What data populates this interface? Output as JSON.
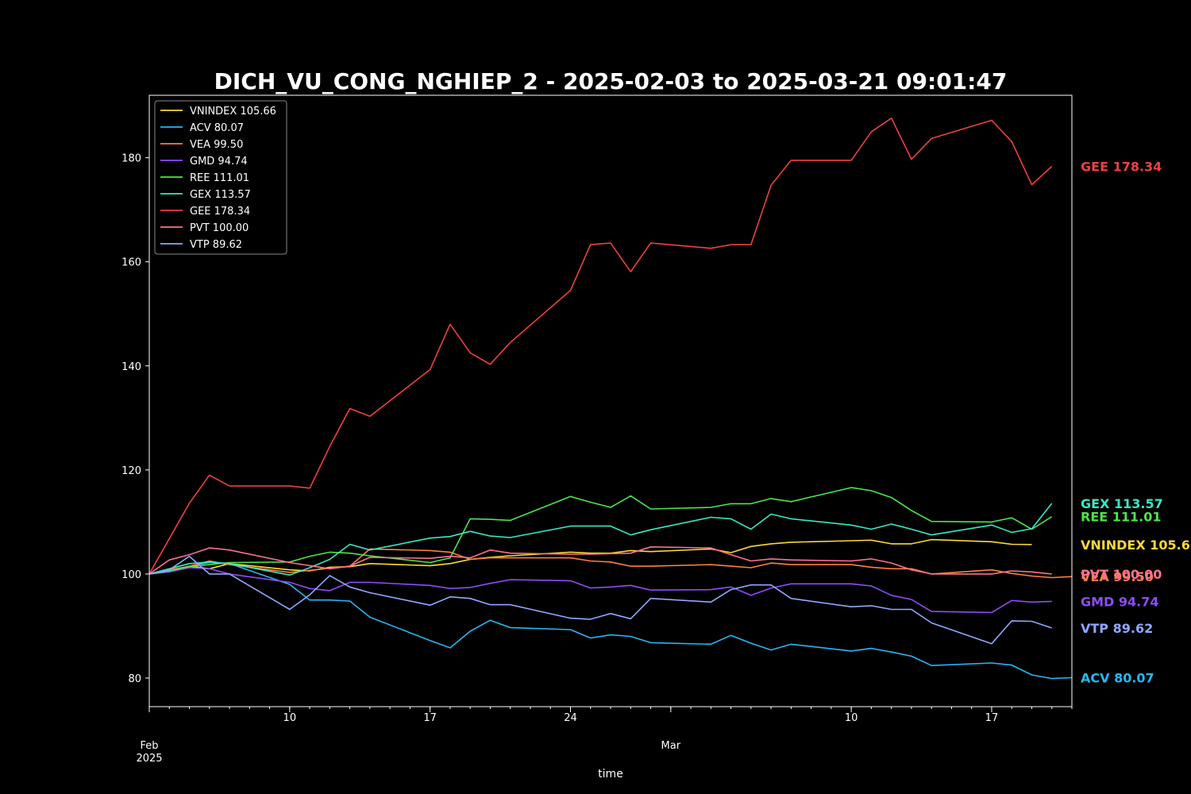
{
  "chart_data": {
    "type": "line",
    "title": "DICH_VU_CONG_NGHIEP_2 - 2025-02-03 to 2025-03-21 09:01:47",
    "xlabel": "time",
    "ylabel": "",
    "ylim": [
      74.5,
      192
    ],
    "xlim": [
      "2025-02-03",
      "2025-03-21"
    ],
    "grid": false,
    "legend_position": "top-left",
    "y_ticks": [
      80,
      100,
      120,
      140,
      160,
      180
    ],
    "x_ticks": [
      {
        "date": "2025-02-03",
        "label": "Feb",
        "sublabel": "2025"
      },
      {
        "date": "2025-02-10",
        "label": "10",
        "sublabel": ""
      },
      {
        "date": "2025-02-17",
        "label": "17",
        "sublabel": ""
      },
      {
        "date": "2025-02-24",
        "label": "24",
        "sublabel": ""
      },
      {
        "date": "2025-03-01",
        "label": "Mar",
        "sublabel": ""
      },
      {
        "date": "2025-03-10",
        "label": "10",
        "sublabel": ""
      },
      {
        "date": "2025-03-17",
        "label": "17",
        "sublabel": ""
      }
    ],
    "dates": [
      "2025-02-03",
      "2025-02-04",
      "2025-02-05",
      "2025-02-06",
      "2025-02-07",
      "2025-02-10",
      "2025-02-11",
      "2025-02-12",
      "2025-02-13",
      "2025-02-14",
      "2025-02-17",
      "2025-02-18",
      "2025-02-19",
      "2025-02-20",
      "2025-02-21",
      "2025-02-24",
      "2025-02-25",
      "2025-02-26",
      "2025-02-27",
      "2025-02-28",
      "2025-03-03",
      "2025-03-04",
      "2025-03-05",
      "2025-03-06",
      "2025-03-07",
      "2025-03-10",
      "2025-03-11",
      "2025-03-12",
      "2025-03-13",
      "2025-03-14",
      "2025-03-17",
      "2025-03-18",
      "2025-03-19",
      "2025-03-20",
      "2025-03-21"
    ],
    "series": [
      {
        "name": "VNINDEX",
        "legend": "VNINDEX 105.66",
        "end_label": "VNINDEX 105.66",
        "color": "#fdd835",
        "values": [
          100,
          100.6,
          101.5,
          101.0,
          102.0,
          100.8,
          100.6,
          101.3,
          101.4,
          102.0,
          101.6,
          102.0,
          102.8,
          103.2,
          103.5,
          104.2,
          104.0,
          104.0,
          104.5,
          104.3,
          104.8,
          104.1,
          105.3,
          105.8,
          106.1,
          106.4,
          106.5,
          105.8,
          105.8,
          106.6,
          106.2,
          105.7,
          105.66,
          null,
          null
        ]
      },
      {
        "name": "ACV",
        "legend": "ACV 80.07",
        "end_label": "ACV 80.07",
        "color": "#29b6f6",
        "values": [
          100,
          100.5,
          101.5,
          102.2,
          102.0,
          98.0,
          95.0,
          95.0,
          94.8,
          91.7,
          87.2,
          85.8,
          89.0,
          91.1,
          89.7,
          89.3,
          87.7,
          88.3,
          88.0,
          86.8,
          86.5,
          88.2,
          86.7,
          85.4,
          86.5,
          85.2,
          85.7,
          85.0,
          84.2,
          82.4,
          82.9,
          82.5,
          80.6,
          79.9,
          80.07
        ]
      },
      {
        "name": "VEA",
        "legend": "VEA 99.50",
        "end_label": "VEA 99.50",
        "color": "#ff7f3f",
        "values": [
          100,
          100.8,
          101.5,
          102.5,
          101.8,
          100.3,
          100.7,
          101.1,
          101.5,
          104.8,
          104.5,
          104.2,
          102.8,
          103.1,
          103.1,
          103.1,
          102.5,
          102.3,
          101.5,
          101.5,
          101.8,
          101.5,
          101.2,
          102.1,
          101.8,
          101.8,
          101.3,
          101.0,
          101.0,
          100.0,
          100.8,
          100.1,
          99.6,
          99.3,
          99.5
        ]
      },
      {
        "name": "GMD",
        "legend": "GMD 94.74",
        "end_label": "GMD 94.74",
        "color": "#8e4cf7",
        "values": [
          100,
          100.4,
          101.2,
          101.0,
          100.0,
          98.4,
          97.2,
          96.8,
          98.4,
          98.4,
          97.8,
          97.2,
          97.4,
          98.2,
          98.9,
          98.7,
          97.3,
          97.5,
          97.8,
          96.9,
          97.0,
          97.5,
          95.9,
          97.3,
          98.1,
          98.1,
          97.7,
          95.9,
          95.1,
          92.8,
          92.6,
          94.9,
          94.6,
          94.74,
          null
        ]
      },
      {
        "name": "REE",
        "legend": "REE 111.01",
        "end_label": "REE 111.01",
        "color": "#4ee44e",
        "values": [
          100,
          100.6,
          101.4,
          101.8,
          102.2,
          102.3,
          103.4,
          104.2,
          104.0,
          103.5,
          102.2,
          103.1,
          110.6,
          110.5,
          110.3,
          114.9,
          113.8,
          112.8,
          115.0,
          112.5,
          112.8,
          113.5,
          113.5,
          114.5,
          113.9,
          116.6,
          116.0,
          114.7,
          112.2,
          110.1,
          110.0,
          110.8,
          108.6,
          111.01,
          null
        ]
      },
      {
        "name": "GEX",
        "legend": "GEX 113.57",
        "end_label": "GEX 113.57",
        "color": "#38e8c5",
        "values": [
          100,
          101.0,
          102.0,
          102.3,
          102.0,
          99.8,
          101.2,
          102.8,
          105.7,
          104.6,
          106.9,
          107.2,
          108.2,
          107.3,
          107.0,
          109.2,
          109.2,
          109.2,
          107.5,
          108.5,
          110.9,
          110.6,
          108.6,
          111.5,
          110.6,
          109.4,
          108.6,
          109.6,
          108.6,
          107.5,
          109.4,
          108.0,
          108.7,
          113.57,
          null
        ]
      },
      {
        "name": "GEE",
        "legend": "GEE 178.34",
        "end_label": "GEE 178.34",
        "color": "#f04040",
        "values": [
          100,
          106.8,
          113.6,
          119.0,
          116.9,
          116.9,
          116.5,
          124.5,
          131.8,
          130.3,
          139.3,
          148.0,
          142.5,
          140.3,
          144.5,
          154.5,
          163.3,
          163.6,
          158.1,
          163.6,
          162.6,
          163.3,
          163.3,
          174.7,
          179.5,
          179.5,
          185.0,
          187.6,
          179.7,
          183.7,
          187.2,
          183.1,
          174.8,
          178.34,
          null
        ]
      },
      {
        "name": "PVT",
        "legend": "PVT 100.00",
        "end_label": "PVT 100.00",
        "color": "#ff6f91",
        "values": [
          100,
          102.7,
          103.7,
          105.0,
          104.6,
          102.2,
          101.6,
          101.0,
          101.5,
          103.2,
          103.0,
          103.4,
          103.1,
          104.6,
          104.0,
          103.8,
          103.8,
          103.9,
          104.0,
          105.2,
          105.0,
          103.7,
          102.5,
          102.9,
          102.7,
          102.5,
          102.9,
          102.1,
          100.8,
          100.0,
          100.0,
          100.6,
          100.4,
          100.0,
          null
        ]
      },
      {
        "name": "VTP",
        "legend": "VTP 89.62",
        "end_label": "VTP 89.62",
        "color": "#8fa8ff",
        "values": [
          100,
          100.8,
          103.4,
          100.0,
          100.0,
          93.2,
          96.0,
          99.7,
          97.5,
          96.4,
          94.0,
          95.6,
          95.3,
          94.1,
          94.1,
          91.5,
          91.3,
          92.4,
          91.4,
          95.3,
          94.6,
          97.0,
          97.9,
          97.9,
          95.3,
          93.7,
          93.9,
          93.2,
          93.2,
          90.6,
          86.6,
          91.0,
          90.9,
          89.62,
          null
        ]
      }
    ]
  }
}
